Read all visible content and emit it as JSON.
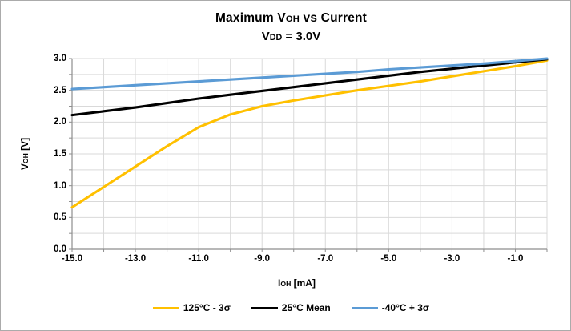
{
  "window": {
    "background_color": "#ffffff",
    "border_color": "#ababab"
  },
  "title": {
    "prefix": "Maximum V",
    "sub": "OH",
    "suffix": " vs Current"
  },
  "subtitle": {
    "prefix": "V",
    "sub": "DD",
    "suffix": " = 3.0V"
  },
  "axis_titles": {
    "y": {
      "prefix": "V",
      "sub": "OH",
      "suffix": " [V]"
    },
    "x": {
      "prefix": "I",
      "sub": "OH",
      "suffix": " [mA]"
    }
  },
  "chart_data": {
    "type": "line",
    "title": "Maximum VOH vs Current",
    "subtitle": "VDD = 3.0V",
    "xlabel": "IOH [mA]",
    "ylabel": "VOH [V]",
    "xlim": [
      -15,
      0
    ],
    "ylim": [
      0,
      3
    ],
    "grid": true,
    "grid_color": "#d9d9d9",
    "axis_color": "#8e8e8e",
    "x_minor_step": 1,
    "y_minor_step": 0.25,
    "x_ticks": [
      -15,
      -13,
      -11,
      -9,
      -7,
      -5,
      -3,
      -1
    ],
    "x_tick_labels": [
      "-15.0",
      "-13.0",
      "-11.0",
      "-9.0",
      "-7.0",
      "-5.0",
      "-3.0",
      "-1.0"
    ],
    "y_ticks": [
      0,
      0.5,
      1,
      1.5,
      2,
      2.5,
      3
    ],
    "y_tick_labels": [
      "0.0",
      "0.5",
      "1.0",
      "1.5",
      "2.0",
      "2.5",
      "3.0"
    ],
    "legend_position": "bottom",
    "x": [
      -15,
      -14,
      -13,
      -12,
      -11,
      -10,
      -9,
      -8,
      -7,
      -6,
      -5,
      -4,
      -3,
      -2,
      -1,
      0
    ],
    "series": [
      {
        "name": "125°C - 3σ",
        "color": "#FFC000",
        "values": [
          0.66,
          0.98,
          1.3,
          1.62,
          1.92,
          2.12,
          2.25,
          2.34,
          2.42,
          2.5,
          2.57,
          2.64,
          2.72,
          2.8,
          2.88,
          2.97
        ]
      },
      {
        "name": "25°C Mean",
        "color": "#000000",
        "values": [
          2.11,
          2.17,
          2.23,
          2.3,
          2.37,
          2.43,
          2.49,
          2.55,
          2.61,
          2.67,
          2.73,
          2.79,
          2.84,
          2.89,
          2.94,
          2.99
        ]
      },
      {
        "name": "-40°C + 3σ",
        "color": "#5B9BD5",
        "values": [
          2.52,
          2.55,
          2.58,
          2.61,
          2.64,
          2.67,
          2.7,
          2.73,
          2.76,
          2.79,
          2.83,
          2.86,
          2.89,
          2.92,
          2.96,
          3.0
        ]
      }
    ]
  }
}
